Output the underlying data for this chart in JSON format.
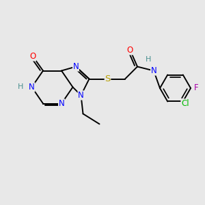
{
  "bg_color": "#e8e8e8",
  "atom_colors": {
    "N": "#0000ff",
    "O": "#ff0000",
    "S": "#b8a000",
    "Cl": "#00bb00",
    "F": "#aa00aa",
    "H_label": "#4a9090",
    "C": "#000000"
  },
  "font_size": 8.5,
  "lw": 1.4
}
